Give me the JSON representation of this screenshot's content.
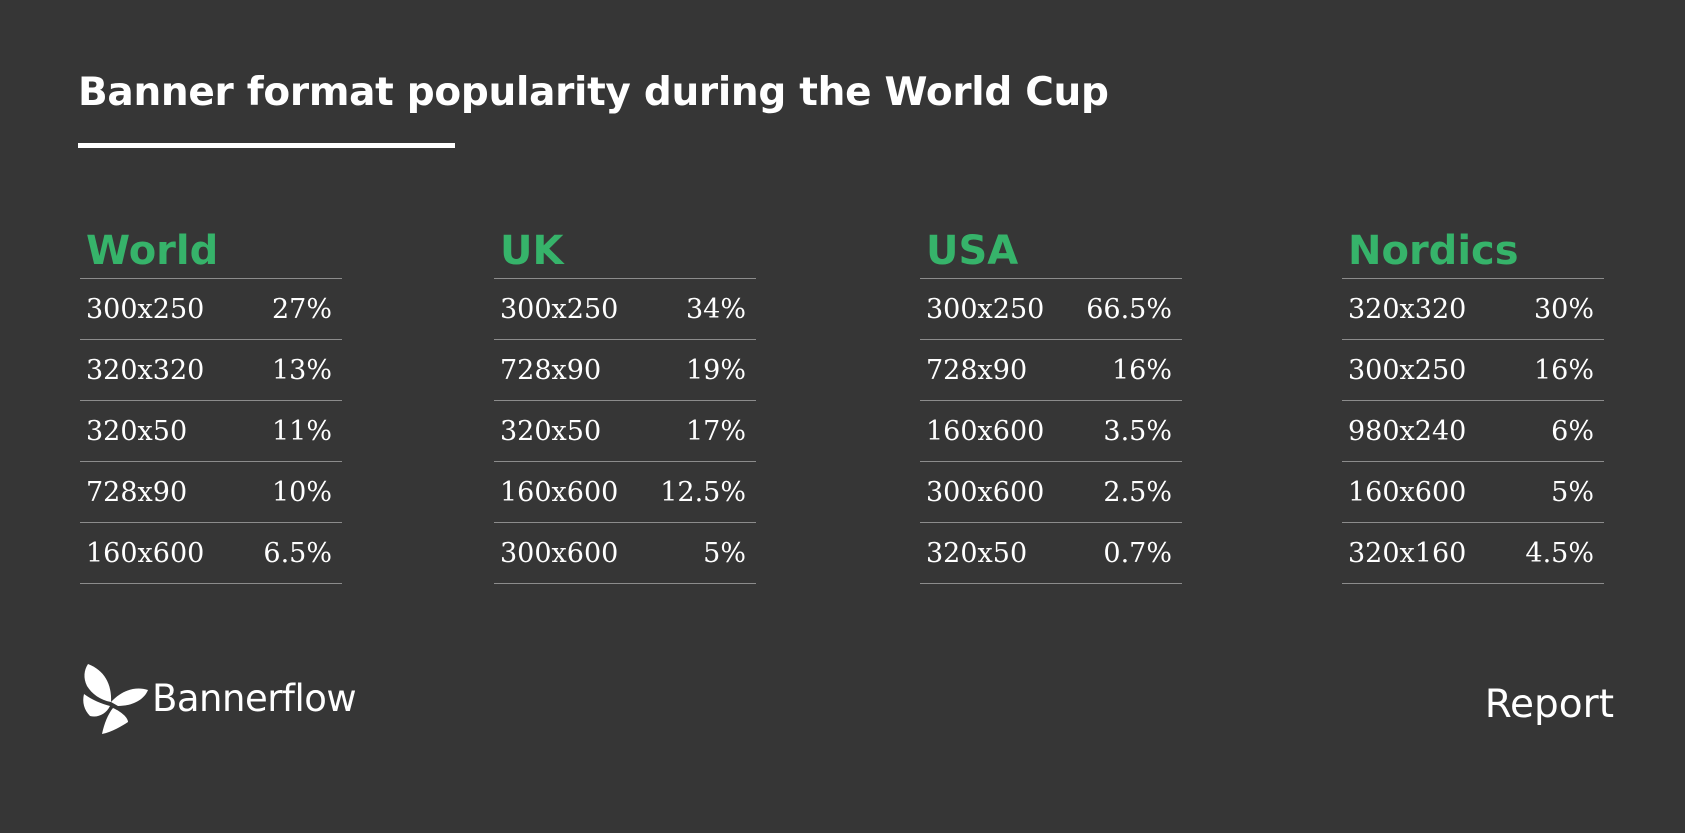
{
  "title": "Banner format popularity during the World Cup",
  "accent_color": "#36b36a",
  "background_color": "#363636",
  "regions": [
    {
      "name": "World",
      "rows": [
        {
          "format": "300x250",
          "share": "27%"
        },
        {
          "format": "320x320",
          "share": "13%"
        },
        {
          "format": "320x50",
          "share": "11%"
        },
        {
          "format": "728x90",
          "share": "10%"
        },
        {
          "format": "160x600",
          "share": "6.5%"
        }
      ]
    },
    {
      "name": "UK",
      "rows": [
        {
          "format": "300x250",
          "share": "34%"
        },
        {
          "format": "728x90",
          "share": "19%"
        },
        {
          "format": "320x50",
          "share": "17%"
        },
        {
          "format": "160x600",
          "share": "12.5%"
        },
        {
          "format": "300x600",
          "share": "5%"
        }
      ]
    },
    {
      "name": "USA",
      "rows": [
        {
          "format": "300x250",
          "share": "66.5%"
        },
        {
          "format": "728x90",
          "share": "16%"
        },
        {
          "format": "160x600",
          "share": "3.5%"
        },
        {
          "format": "300x600",
          "share": "2.5%"
        },
        {
          "format": "320x50",
          "share": "0.7%"
        }
      ]
    },
    {
      "name": "Nordics",
      "rows": [
        {
          "format": "320x320",
          "share": "30%"
        },
        {
          "format": "300x250",
          "share": "16%"
        },
        {
          "format": "980x240",
          "share": "6%"
        },
        {
          "format": "160x600",
          "share": "5%"
        },
        {
          "format": "320x160",
          "share": "4.5%"
        }
      ]
    }
  ],
  "footer": {
    "logo_icon": "butterfly-icon",
    "brand": "Bannerflow",
    "label": "Report"
  }
}
